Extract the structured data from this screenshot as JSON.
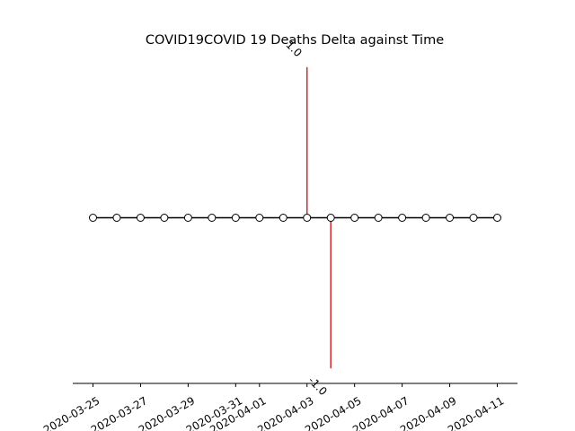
{
  "chart_data": {
    "type": "line",
    "title": "COVID19COVID 19 Deaths Delta against Time",
    "xlabel": "",
    "ylabel": "",
    "x": [
      "2020-03-25",
      "2020-03-26",
      "2020-03-27",
      "2020-03-28",
      "2020-03-29",
      "2020-03-30",
      "2020-03-31",
      "2020-04-01",
      "2020-04-02",
      "2020-04-03",
      "2020-04-04",
      "2020-04-05",
      "2020-04-06",
      "2020-04-07",
      "2020-04-08",
      "2020-04-09",
      "2020-04-10",
      "2020-04-11"
    ],
    "values": [
      0,
      0,
      0,
      0,
      0,
      0,
      0,
      0,
      0,
      0,
      0,
      0,
      0,
      0,
      0,
      0,
      0,
      0
    ],
    "xticks": [
      "2020-03-25",
      "2020-03-27",
      "2020-03-29",
      "2020-03-31",
      "2020-04-01",
      "2020-04-03",
      "2020-04-05",
      "2020-04-07",
      "2020-04-09",
      "2020-04-11"
    ],
    "ylim": [
      -1.1,
      1.1
    ],
    "spikes": [
      {
        "date": "2020-04-03",
        "value": 1.0,
        "label": "1.0"
      },
      {
        "date": "2020-04-04",
        "value": -1.0,
        "label": "-1.0"
      }
    ],
    "grid": false,
    "colors": {
      "line": "#000000",
      "marker_fill": "#ffffff",
      "spike": "#d62728"
    }
  }
}
